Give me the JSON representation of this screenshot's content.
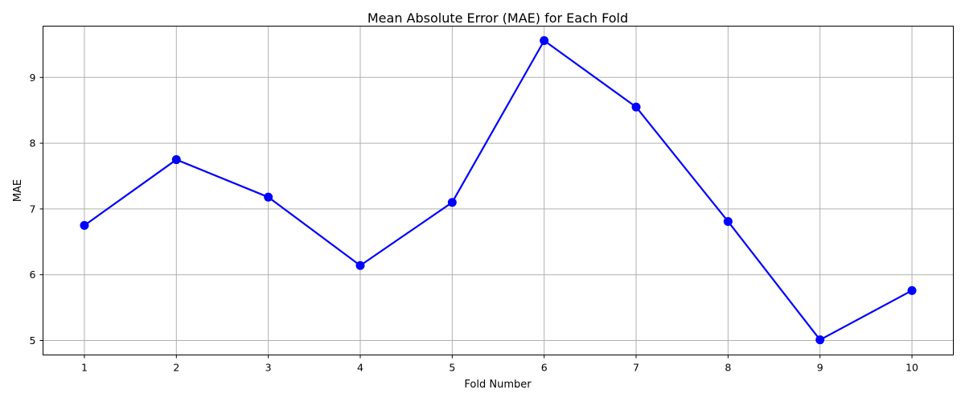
{
  "chart_data": {
    "type": "line",
    "title": "Mean Absolute Error (MAE) for Each Fold",
    "xlabel": "Fold Number",
    "ylabel": "MAE",
    "x": [
      1,
      2,
      3,
      4,
      5,
      6,
      7,
      8,
      9,
      10
    ],
    "xlim": [
      0.55,
      10.45
    ],
    "ylim": [
      4.78,
      9.78
    ],
    "yticks": [
      5,
      6,
      7,
      8,
      9
    ],
    "grid": true,
    "series": [
      {
        "values": [
          6.75,
          7.75,
          7.18,
          6.14,
          7.1,
          9.56,
          8.55,
          6.81,
          5.01,
          5.76
        ],
        "color": "#0000ff",
        "marker": "circle"
      }
    ]
  }
}
